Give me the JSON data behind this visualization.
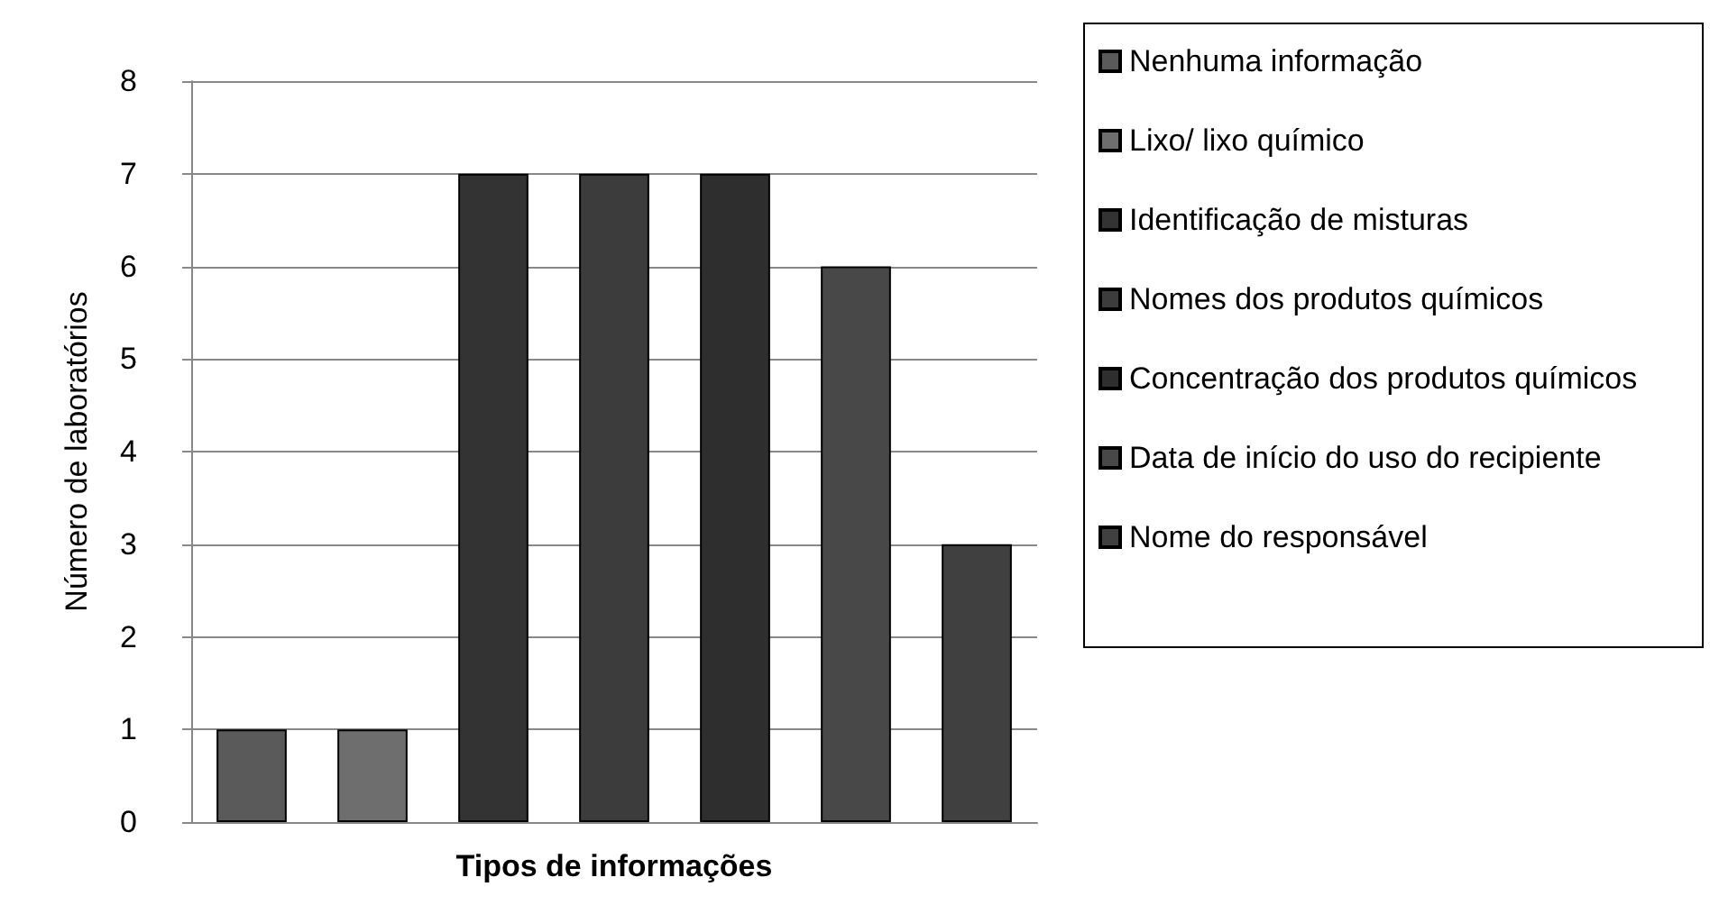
{
  "chart_data": {
    "type": "bar",
    "xlabel": "Tipos de informações",
    "ylabel": "Número de laboratórios",
    "categories": [
      null,
      null,
      null,
      null,
      null,
      null,
      null
    ],
    "stacked": true,
    "ylim": [
      0,
      8
    ],
    "yticks": [
      0,
      1,
      2,
      3,
      4,
      5,
      6,
      7,
      8
    ],
    "grid": "y",
    "legend": "right",
    "series": [
      {
        "name": "Nenhuma informação",
        "color": "#5a5a5a",
        "values": [
          1,
          null,
          null,
          null,
          null,
          null,
          null
        ]
      },
      {
        "name": "Lixo/ lixo químico",
        "color": "#6e6e6e",
        "values": [
          null,
          1,
          null,
          null,
          null,
          null,
          null
        ]
      },
      {
        "name": "Identificação de misturas",
        "color": "#333333",
        "values": [
          null,
          null,
          7,
          null,
          null,
          null,
          null
        ]
      },
      {
        "name": "Nomes dos produtos químicos",
        "color": "#3c3c3c",
        "values": [
          null,
          null,
          null,
          7,
          null,
          null,
          null
        ]
      },
      {
        "name": "Concentração dos produtos químicos",
        "color": "#2e2e2e",
        "values": [
          null,
          null,
          null,
          null,
          7,
          null,
          null
        ]
      },
      {
        "name": "Data de início do uso do recipiente",
        "color": "#484848",
        "values": [
          null,
          null,
          null,
          null,
          null,
          6,
          null
        ]
      },
      {
        "name": "Nome do responsável",
        "color": "#404040",
        "values": [
          null,
          null,
          null,
          null,
          null,
          null,
          3
        ]
      }
    ]
  }
}
